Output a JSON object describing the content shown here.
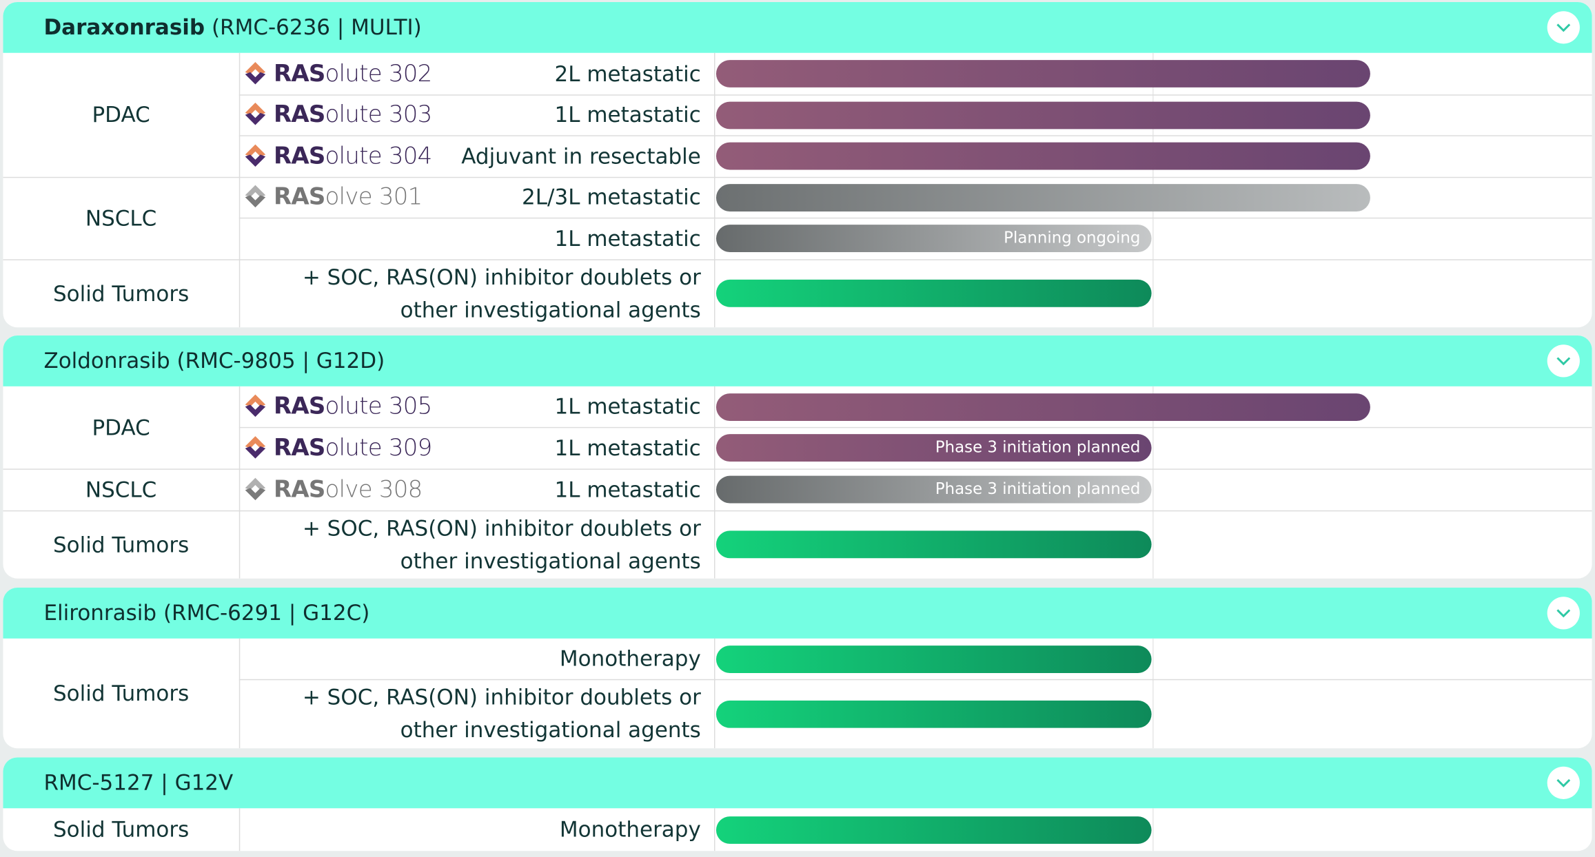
{
  "sections": [
    {
      "drug": "Daraxonrasib",
      "detail": "(RMC-6236 | MULTI)",
      "groups": [
        {
          "indication": "PDAC",
          "rows": [
            {
              "trial": {
                "brand": "RAS",
                "name": "olute 302"
              },
              "setting": [
                "2L metastatic"
              ]
            },
            {
              "trial": {
                "brand": "RAS",
                "name": "olute 303"
              },
              "setting": [
                "1L metastatic"
              ]
            },
            {
              "trial": {
                "brand": "RAS",
                "name": "olute 304"
              },
              "setting": [
                "Adjuvant in resectable"
              ]
            }
          ]
        },
        {
          "indication": "NSCLC",
          "rows": [
            {
              "trial": {
                "brand": "RAS",
                "name": "olve 301"
              },
              "setting": [
                "2L/3L metastatic"
              ]
            },
            {
              "setting": [
                "1L metastatic"
              ],
              "bar_label": "Planning ongoing"
            }
          ]
        },
        {
          "indication": "Solid Tumors",
          "rows": [
            {
              "setting": [
                "+ SOC, RAS(ON) inhibitor doublets or",
                "other investigational agents"
              ]
            }
          ]
        }
      ]
    },
    {
      "title": "Zoldonrasib (RMC-9805 | G12D)",
      "groups": [
        {
          "indication": "PDAC",
          "rows": [
            {
              "trial": {
                "brand": "RAS",
                "name": "olute 305"
              },
              "setting": [
                "1L metastatic"
              ]
            },
            {
              "trial": {
                "brand": "RAS",
                "name": "olute 309"
              },
              "setting": [
                "1L metastatic"
              ],
              "bar_label": "Phase 3 initiation planned"
            }
          ]
        },
        {
          "indication": "NSCLC",
          "rows": [
            {
              "trial": {
                "brand": "RAS",
                "name": "olve 308"
              },
              "setting": [
                "1L metastatic"
              ],
              "bar_label": "Phase 3 initiation planned"
            }
          ]
        },
        {
          "indication": "Solid Tumors",
          "rows": [
            {
              "setting": [
                "+ SOC, RAS(ON) inhibitor doublets or",
                "other investigational agents"
              ]
            }
          ]
        }
      ]
    },
    {
      "title": "Elironrasib (RMC-6291 | G12C)",
      "groups": [
        {
          "indication": "Solid Tumors",
          "rows": [
            {
              "setting": [
                "Monotherapy"
              ]
            },
            {
              "setting": [
                "+ SOC, RAS(ON) inhibitor doublets or",
                "other investigational agents"
              ]
            }
          ]
        }
      ]
    },
    {
      "title": "RMC-5127 | G12V",
      "groups": [
        {
          "indication": "Solid Tumors",
          "rows": [
            {
              "setting": [
                "Monotherapy"
              ]
            }
          ]
        }
      ]
    }
  ]
}
